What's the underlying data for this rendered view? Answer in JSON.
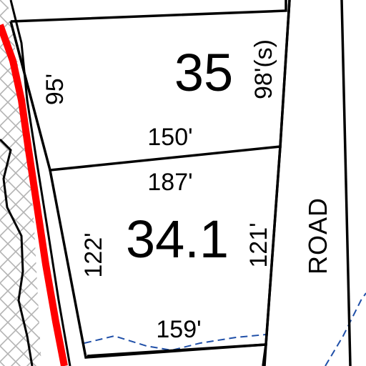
{
  "colors": {
    "background": "#ffffff",
    "lot_line": "#000000",
    "boundary_line": "#ff0000",
    "hatch": "#b3b3b3",
    "stream": "#1f4fa8"
  },
  "lots": [
    {
      "number": "35",
      "dimensions": {
        "left": "95'",
        "right": "98'(s)",
        "bottom": "150'"
      }
    },
    {
      "number": "34.1",
      "dimensions": {
        "top": "187'",
        "left": "122'",
        "right": "121'",
        "bottom": "159'"
      }
    }
  ],
  "road": {
    "label": "ROAD"
  }
}
